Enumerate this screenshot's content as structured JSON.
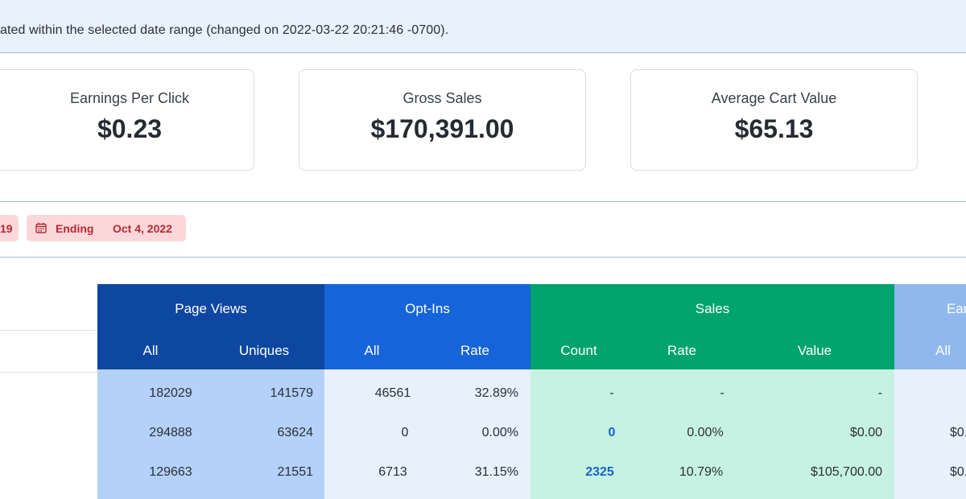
{
  "notice": {
    "text": "ated within the selected date range (changed on 2022-03-22 20:21:46 -0700)."
  },
  "stats": [
    {
      "label": "Earnings Per Click",
      "value": "$0.23"
    },
    {
      "label": "Gross Sales",
      "value": "$170,391.00"
    },
    {
      "label": "Average Cart Value",
      "value": "$65.13"
    }
  ],
  "filters": {
    "start_fragment": "19",
    "end_label": "Ending",
    "end_date": "Oct 4, 2022"
  },
  "colors": {
    "page_views_header": "#0d47a1",
    "optins_header": "#1664d9",
    "sales_header": "#00a36c",
    "earnings_header": "#8fb9ee",
    "page_views_body": "#b3d1f9",
    "optins_body": "#e7f0fb",
    "sales_body": "#c5f2e2",
    "earnings_body": "#e7f0fb",
    "link": "#1a63c7"
  },
  "table": {
    "groups": [
      "Page Views",
      "Opt-Ins",
      "Sales",
      "Ear"
    ],
    "subheaders": [
      "All",
      "Uniques",
      "All",
      "Rate",
      "Count",
      "Rate",
      "Value",
      "All"
    ],
    "rows": [
      [
        "182029",
        "141579",
        "46561",
        "32.89%",
        "-",
        "-",
        "-",
        ""
      ],
      [
        "294888",
        "63624",
        "0",
        "0.00%",
        "0",
        "0.00%",
        "$0.00",
        "$0."
      ],
      [
        "129663",
        "21551",
        "6713",
        "31.15%",
        "2325",
        "10.79%",
        "$105,700.00",
        "$0."
      ]
    ]
  }
}
